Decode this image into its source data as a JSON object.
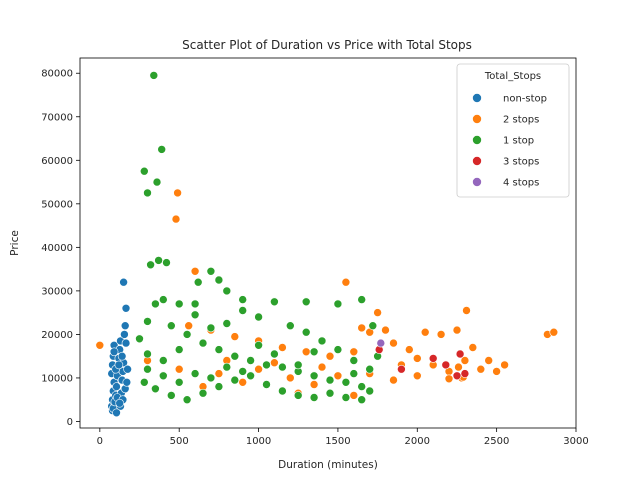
{
  "chart_data": {
    "type": "scatter",
    "title": "Scatter Plot of Duration vs Price with Total Stops",
    "xlabel": "Duration (minutes)",
    "ylabel": "Price",
    "xlim": [
      -125,
      3000
    ],
    "ylim": [
      -1500,
      83500
    ],
    "x_ticks": [
      0,
      500,
      1000,
      1500,
      2000,
      2500,
      3000
    ],
    "y_ticks": [
      0,
      10000,
      20000,
      30000,
      40000,
      50000,
      60000,
      70000,
      80000
    ],
    "grid": false,
    "legend": {
      "title": "Total_Stops",
      "placement": "top-right"
    },
    "series": [
      {
        "name": "non-stop",
        "color": "#1f77b4",
        "points": [
          [
            75,
            3500
          ],
          [
            80,
            5000
          ],
          [
            85,
            7000
          ],
          [
            90,
            9000
          ],
          [
            75,
            11000
          ],
          [
            80,
            13000
          ],
          [
            85,
            15000
          ],
          [
            90,
            17500
          ],
          [
            95,
            4000
          ],
          [
            100,
            6000
          ],
          [
            105,
            8000
          ],
          [
            110,
            10500
          ],
          [
            115,
            12500
          ],
          [
            120,
            14500
          ],
          [
            125,
            16500
          ],
          [
            130,
            18500
          ],
          [
            135,
            6500
          ],
          [
            140,
            9500
          ],
          [
            145,
            11500
          ],
          [
            150,
            13500
          ],
          [
            155,
            20000
          ],
          [
            160,
            22000
          ],
          [
            165,
            26000
          ],
          [
            150,
            32000
          ],
          [
            80,
            2500
          ],
          [
            85,
            3000
          ],
          [
            95,
            4500
          ],
          [
            110,
            5500
          ],
          [
            130,
            3500
          ],
          [
            145,
            5000
          ],
          [
            160,
            7500
          ],
          [
            170,
            9000
          ],
          [
            100,
            12000
          ],
          [
            120,
            13000
          ],
          [
            140,
            15000
          ],
          [
            90,
            16000
          ],
          [
            105,
            2000
          ],
          [
            125,
            4200
          ],
          [
            175,
            12000
          ],
          [
            165,
            18000
          ]
        ]
      },
      {
        "name": "2 stops",
        "color": "#ff7f0e",
        "points": [
          [
            0,
            17500
          ],
          [
            480,
            46500
          ],
          [
            490,
            52500
          ],
          [
            600,
            34500
          ],
          [
            560,
            22000
          ],
          [
            700,
            21000
          ],
          [
            850,
            19500
          ],
          [
            1000,
            18500
          ],
          [
            1150,
            17000
          ],
          [
            1300,
            16000
          ],
          [
            1450,
            15000
          ],
          [
            1550,
            32000
          ],
          [
            1600,
            16000
          ],
          [
            1650,
            21500
          ],
          [
            1700,
            20500
          ],
          [
            1750,
            25000
          ],
          [
            1800,
            21000
          ],
          [
            1850,
            18000
          ],
          [
            1900,
            13000
          ],
          [
            1950,
            16500
          ],
          [
            2000,
            14500
          ],
          [
            2050,
            20500
          ],
          [
            2100,
            13000
          ],
          [
            2150,
            20000
          ],
          [
            2200,
            11500
          ],
          [
            2250,
            21000
          ],
          [
            2260,
            12500
          ],
          [
            2280,
            10000
          ],
          [
            2300,
            14000
          ],
          [
            2310,
            25500
          ],
          [
            2350,
            17000
          ],
          [
            2400,
            12000
          ],
          [
            2450,
            14000
          ],
          [
            2500,
            11500
          ],
          [
            2550,
            13000
          ],
          [
            2820,
            20000
          ],
          [
            2860,
            20500
          ],
          [
            1200,
            10000
          ],
          [
            1350,
            8500
          ],
          [
            1500,
            10500
          ],
          [
            900,
            9000
          ],
          [
            750,
            11000
          ],
          [
            650,
            8000
          ],
          [
            1100,
            13500
          ],
          [
            1400,
            12500
          ],
          [
            1700,
            11000
          ],
          [
            1850,
            9500
          ],
          [
            2000,
            10500
          ],
          [
            2200,
            9800
          ],
          [
            2290,
            10200
          ],
          [
            1250,
            6500
          ],
          [
            1600,
            6000
          ],
          [
            500,
            12000
          ],
          [
            800,
            14000
          ],
          [
            1000,
            12000
          ],
          [
            300,
            14000
          ]
        ]
      },
      {
        "name": "1 stop",
        "color": "#2ca02c",
        "points": [
          [
            340,
            79500
          ],
          [
            390,
            62500
          ],
          [
            280,
            57500
          ],
          [
            360,
            55000
          ],
          [
            300,
            52500
          ],
          [
            370,
            37000
          ],
          [
            420,
            36500
          ],
          [
            320,
            36000
          ],
          [
            700,
            34500
          ],
          [
            750,
            32500
          ],
          [
            620,
            32000
          ],
          [
            800,
            30000
          ],
          [
            900,
            28000
          ],
          [
            1100,
            27500
          ],
          [
            1300,
            27500
          ],
          [
            1500,
            27000
          ],
          [
            1650,
            28000
          ],
          [
            500,
            27000
          ],
          [
            400,
            28000
          ],
          [
            600,
            27000
          ],
          [
            350,
            27000
          ],
          [
            250,
            19000
          ],
          [
            300,
            23000
          ],
          [
            450,
            22000
          ],
          [
            550,
            20000
          ],
          [
            650,
            18000
          ],
          [
            750,
            16500
          ],
          [
            850,
            15000
          ],
          [
            950,
            14000
          ],
          [
            1050,
            13000
          ],
          [
            1150,
            12500
          ],
          [
            1250,
            11500
          ],
          [
            1350,
            10500
          ],
          [
            1450,
            9500
          ],
          [
            1550,
            9000
          ],
          [
            1650,
            8000
          ],
          [
            1700,
            7000
          ],
          [
            1750,
            15000
          ],
          [
            1720,
            22000
          ],
          [
            1600,
            14000
          ],
          [
            1500,
            16500
          ],
          [
            1400,
            18500
          ],
          [
            1300,
            20500
          ],
          [
            1200,
            22000
          ],
          [
            1000,
            24000
          ],
          [
            900,
            25500
          ],
          [
            800,
            22500
          ],
          [
            700,
            21500
          ],
          [
            600,
            24500
          ],
          [
            500,
            16500
          ],
          [
            400,
            14000
          ],
          [
            300,
            12000
          ],
          [
            280,
            9000
          ],
          [
            350,
            7500
          ],
          [
            450,
            6000
          ],
          [
            550,
            5000
          ],
          [
            650,
            6500
          ],
          [
            750,
            8000
          ],
          [
            850,
            9500
          ],
          [
            950,
            10500
          ],
          [
            1050,
            8500
          ],
          [
            1150,
            7000
          ],
          [
            1250,
            6000
          ],
          [
            1350,
            5500
          ],
          [
            1450,
            6500
          ],
          [
            1550,
            5500
          ],
          [
            1650,
            5000
          ],
          [
            1350,
            16000
          ],
          [
            1250,
            13000
          ],
          [
            1100,
            15500
          ],
          [
            1000,
            17500
          ],
          [
            900,
            11500
          ],
          [
            800,
            12500
          ],
          [
            700,
            10000
          ],
          [
            600,
            11000
          ],
          [
            500,
            9000
          ],
          [
            400,
            10500
          ],
          [
            300,
            15500
          ],
          [
            1600,
            11000
          ],
          [
            1700,
            12000
          ]
        ]
      },
      {
        "name": "3 stops",
        "color": "#d62728",
        "points": [
          [
            1760,
            16500
          ],
          [
            2100,
            14500
          ],
          [
            2270,
            15500
          ],
          [
            2180,
            13000
          ],
          [
            2300,
            11000
          ],
          [
            1900,
            12000
          ],
          [
            2250,
            10500
          ]
        ]
      },
      {
        "name": "4 stops",
        "color": "#9467bd",
        "points": [
          [
            1770,
            18000
          ]
        ]
      }
    ]
  }
}
